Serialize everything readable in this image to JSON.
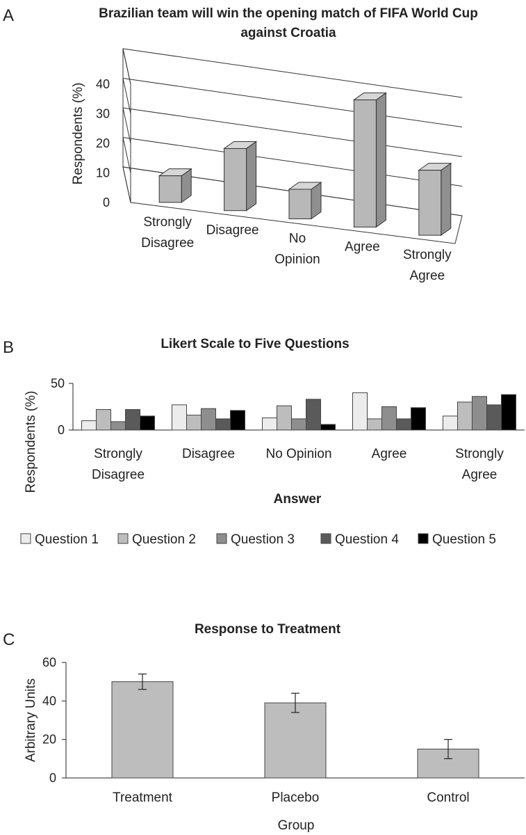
{
  "panels": [
    "A",
    "B",
    "C"
  ],
  "chart_data": [
    {
      "type": "bar",
      "style": "3d",
      "title_lines": [
        "Brazilian team will win the opening match of FIFA World Cup",
        "against Croatia"
      ],
      "categories": [
        [
          "Strongly",
          "Disagree"
        ],
        [
          "Disagree"
        ],
        [
          "No",
          "Opinion"
        ],
        [
          "Agree"
        ],
        [
          "Strongly",
          "Agree"
        ]
      ],
      "values": [
        9,
        21,
        10,
        43,
        22
      ],
      "xlabel": "",
      "ylabel": "Respondents (%)",
      "ylim": [
        0,
        40
      ],
      "yticks": [
        "0",
        "10",
        "20",
        "30",
        "40"
      ],
      "grid": true,
      "colors": {
        "bar_front": "#b8b8b8",
        "bar_side": "#8f8f8f",
        "bar_top": "#d6d6d6"
      }
    },
    {
      "type": "bar",
      "title": "Likert Scale to Five Questions",
      "categories": [
        [
          "Strongly",
          "Disagree"
        ],
        [
          "Disagree"
        ],
        [
          "No Opinion"
        ],
        [
          "Agree"
        ],
        [
          "Strongly",
          "Agree"
        ]
      ],
      "series": [
        {
          "name": "Question 1",
          "color": "#ececec",
          "values": [
            10,
            27,
            13,
            40,
            15
          ]
        },
        {
          "name": "Question 2",
          "color": "#bdbdbd",
          "values": [
            22,
            16,
            26,
            12,
            30
          ]
        },
        {
          "name": "Question 3",
          "color": "#8e8e8e",
          "values": [
            9,
            23,
            12,
            25,
            36
          ]
        },
        {
          "name": "Question 4",
          "color": "#5a5a5a",
          "values": [
            22,
            12,
            33,
            12,
            27
          ]
        },
        {
          "name": "Question 5",
          "color": "#000000",
          "values": [
            15,
            21,
            6,
            24,
            38
          ]
        }
      ],
      "xlabel": "Answer",
      "ylabel": "Respondents (%)",
      "ylim": [
        0,
        50
      ],
      "yticks": [
        "0",
        "50"
      ],
      "legend": "bottom"
    },
    {
      "type": "bar",
      "title": "Response to Treatment",
      "categories": [
        "Treatment",
        "Placebo",
        "Control"
      ],
      "values": [
        50,
        39,
        15
      ],
      "errors": [
        4,
        5,
        5
      ],
      "xlabel": "Group",
      "ylabel": "Arbitrary Units",
      "ylim": [
        0,
        60
      ],
      "yticks": [
        "0",
        "20",
        "40",
        "60"
      ],
      "color": "#bdbdbd"
    }
  ]
}
